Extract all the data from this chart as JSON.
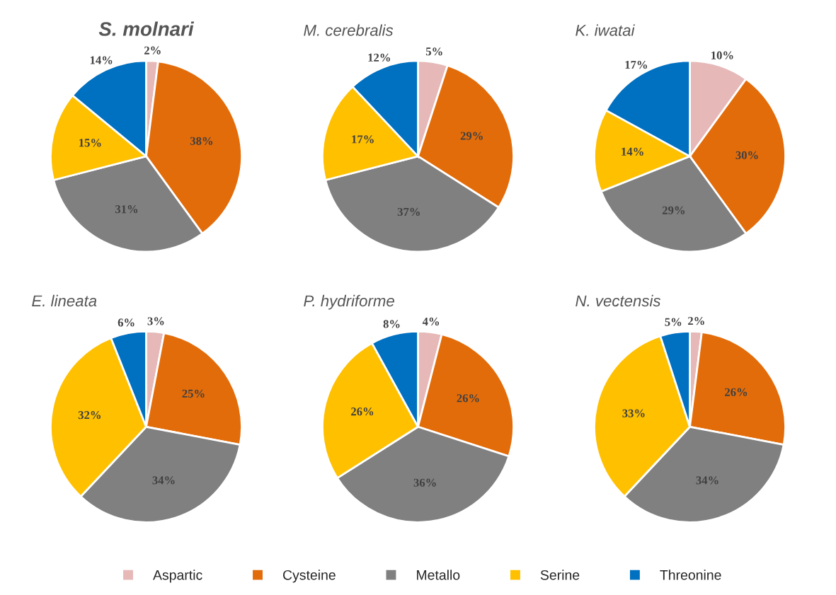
{
  "chart_data": [
    {
      "type": "pie",
      "title": "S. molnari",
      "categories": [
        "Aspartic",
        "Cysteine",
        "Metallo",
        "Serine",
        "Threonine"
      ],
      "values": [
        2,
        38,
        31,
        15,
        14
      ],
      "value_labels": [
        "2%",
        "38%",
        "31%",
        "15%",
        "14%"
      ],
      "colors": [
        "#e6b8b7",
        "#e36c0a",
        "#808080",
        "#ffc000",
        "#0070c0"
      ],
      "legend": "bottom"
    },
    {
      "type": "pie",
      "title": "M. cerebralis",
      "values": [
        5,
        29,
        37,
        17,
        12
      ],
      "value_labels": [
        "5%",
        "29%",
        "37%",
        "17%",
        "12%"
      ],
      "colors": [
        "#e6b8b7",
        "#e36c0a",
        "#808080",
        "#ffc000",
        "#0070c0"
      ]
    },
    {
      "type": "pie",
      "title": "K. iwatai",
      "values": [
        10,
        30,
        29,
        14,
        17
      ],
      "value_labels": [
        "10%",
        "30%",
        "29%",
        "14%",
        "17%"
      ],
      "colors": [
        "#e6b8b7",
        "#e36c0a",
        "#808080",
        "#ffc000",
        "#0070c0"
      ]
    },
    {
      "type": "pie",
      "title": "E. lineata",
      "values": [
        3,
        25,
        34,
        32,
        6
      ],
      "value_labels": [
        "3%",
        "25%",
        "34%",
        "32%",
        "6%"
      ],
      "colors": [
        "#e6b8b7",
        "#e36c0a",
        "#808080",
        "#ffc000",
        "#0070c0"
      ]
    },
    {
      "type": "pie",
      "title": "P. hydriforme",
      "values": [
        4,
        26,
        36,
        26,
        8
      ],
      "value_labels": [
        "4%",
        "26%",
        "36%",
        "26%",
        "8%"
      ],
      "colors": [
        "#e6b8b7",
        "#e36c0a",
        "#808080",
        "#ffc000",
        "#0070c0"
      ]
    },
    {
      "type": "pie",
      "title": "N. vectensis",
      "values": [
        2,
        26,
        34,
        33,
        5
      ],
      "value_labels": [
        "2%",
        "26%",
        "34%",
        "33%",
        "5%"
      ],
      "colors": [
        "#e6b8b7",
        "#e36c0a",
        "#808080",
        "#ffc000",
        "#0070c0"
      ]
    }
  ]
}
